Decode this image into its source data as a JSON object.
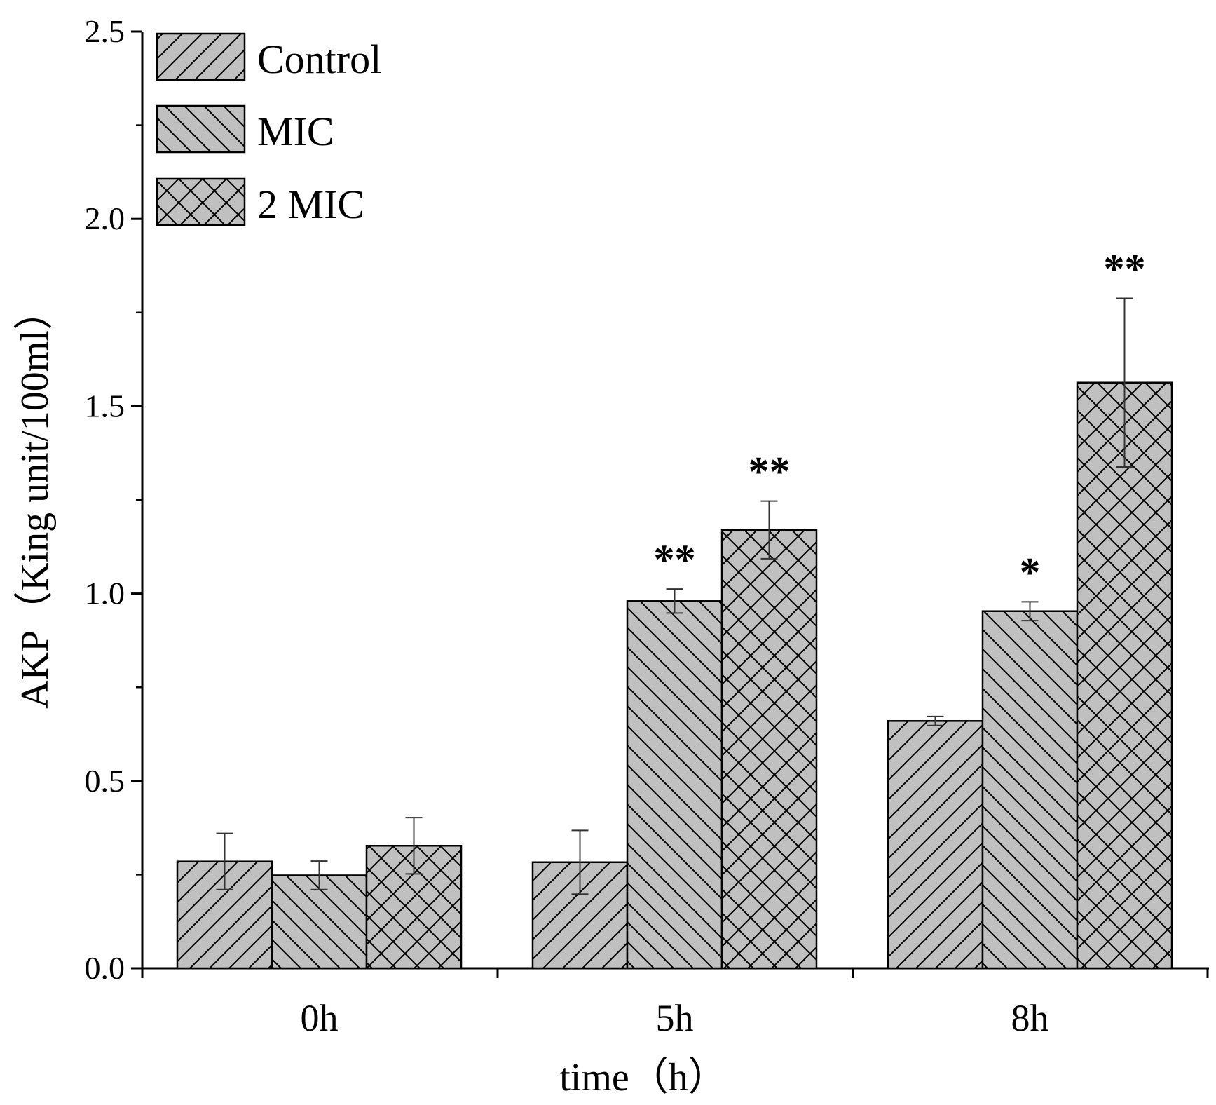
{
  "chart_data": {
    "type": "bar",
    "title": "",
    "xlabel": "time（h）",
    "ylabel": "AKP（King unit/100ml）",
    "ylim": [
      0,
      2.5
    ],
    "yticks": [
      0.0,
      0.5,
      1.0,
      1.5,
      2.0,
      2.5
    ],
    "ytick_labels": [
      "0.0",
      "0.5",
      "1.0",
      "1.5",
      "2.0",
      "2.5"
    ],
    "categories": [
      "0h",
      "5h",
      "8h"
    ],
    "legend_position": "top-left",
    "series": [
      {
        "name": "Control",
        "pattern": "diagonal-forward",
        "values": [
          0.285,
          0.283,
          0.66
        ],
        "errors": [
          0.075,
          0.085,
          0.012
        ],
        "significance": [
          "",
          "",
          ""
        ]
      },
      {
        "name": "MIC",
        "pattern": "diagonal-backward",
        "values": [
          0.248,
          0.98,
          0.953
        ],
        "errors": [
          0.038,
          0.032,
          0.025
        ],
        "significance": [
          "",
          "**",
          "*"
        ]
      },
      {
        "name": "2 MIC",
        "pattern": "crosshatch",
        "values": [
          0.327,
          1.17,
          1.563
        ],
        "errors": [
          0.075,
          0.077,
          0.225
        ],
        "significance": [
          "",
          "**",
          "**"
        ]
      }
    ]
  },
  "colors": {
    "bar_fill": "#c0c0c0",
    "bar_stroke": "#000000",
    "axis": "#000000"
  }
}
